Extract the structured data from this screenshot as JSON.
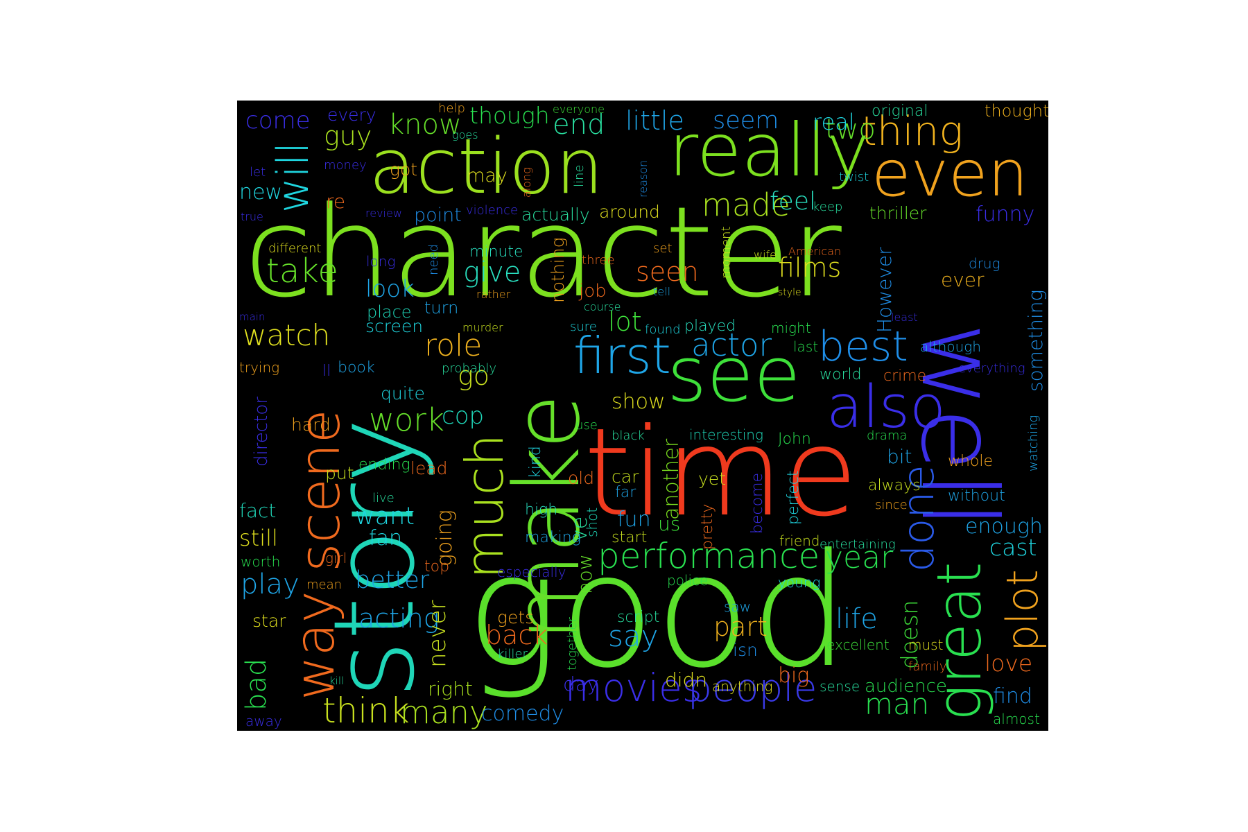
{
  "cloud": {
    "background": "#000000",
    "words": [
      {
        "text": "character",
        "color": "#7ce01f"
      },
      {
        "text": "good",
        "color": "#5ae02b"
      },
      {
        "text": "time",
        "color": "#f03a1e"
      },
      {
        "text": "story",
        "color": "#1fd6b8"
      },
      {
        "text": "make",
        "color": "#66e02a"
      },
      {
        "text": "really",
        "color": "#7ce01f"
      },
      {
        "text": "action",
        "color": "#9be01f"
      },
      {
        "text": "see",
        "color": "#3ee03a"
      },
      {
        "text": "even",
        "color": "#f0a21e"
      },
      {
        "text": "well",
        "color": "#3a2ee8"
      },
      {
        "text": "scene",
        "color": "#f06a1e"
      },
      {
        "text": "much",
        "color": "#a9e01f"
      },
      {
        "text": "also",
        "color": "#3a2ee8"
      },
      {
        "text": "great",
        "color": "#29e050"
      },
      {
        "text": "first",
        "color": "#1fa6e8"
      },
      {
        "text": "way",
        "color": "#f06a1e"
      },
      {
        "text": "done",
        "color": "#2a5ae8"
      },
      {
        "text": "people",
        "color": "#3a3ae8"
      },
      {
        "text": "movies",
        "color": "#3a2ee8"
      },
      {
        "text": "performance",
        "color": "#29e050"
      },
      {
        "text": "thing",
        "color": "#f0b21e"
      },
      {
        "text": "best",
        "color": "#1f8ee8"
      },
      {
        "text": "plot",
        "color": "#f0a21e"
      },
      {
        "text": "will",
        "color": "#1fd6e0"
      },
      {
        "text": "think",
        "color": "#c8e01f"
      },
      {
        "text": "many",
        "color": "#a9e01f"
      },
      {
        "text": "made",
        "color": "#a9e01f"
      },
      {
        "text": "actor",
        "color": "#1fa6e8"
      },
      {
        "text": "work",
        "color": "#66e02a"
      },
      {
        "text": "role",
        "color": "#f0b21e"
      },
      {
        "text": "year",
        "color": "#29e050"
      },
      {
        "text": "watch",
        "color": "#e0e01f"
      },
      {
        "text": "take",
        "color": "#66e02a"
      },
      {
        "text": "give",
        "color": "#29e0c0"
      },
      {
        "text": "know",
        "color": "#66e02a"
      },
      {
        "text": "end",
        "color": "#29e0a0"
      },
      {
        "text": "two",
        "color": "#66e02a"
      },
      {
        "text": "little",
        "color": "#1fa6e8"
      },
      {
        "text": "seem",
        "color": "#1f8ee8"
      },
      {
        "text": "real",
        "color": "#1fd6e0"
      },
      {
        "text": "guy",
        "color": "#a9e01f"
      },
      {
        "text": "come",
        "color": "#3a2ee8"
      },
      {
        "text": "though",
        "color": "#29e050"
      },
      {
        "text": "seen",
        "color": "#f06a1e"
      },
      {
        "text": "films",
        "color": "#e0e01f"
      },
      {
        "text": "feel",
        "color": "#29e0c0"
      },
      {
        "text": "ever",
        "color": "#f0b21e"
      },
      {
        "text": "lot",
        "color": "#3ee03a"
      },
      {
        "text": "look",
        "color": "#1fa6e8"
      },
      {
        "text": "life",
        "color": "#1fa6e8"
      },
      {
        "text": "back",
        "color": "#f06a1e"
      },
      {
        "text": "part",
        "color": "#f0b21e"
      },
      {
        "text": "say",
        "color": "#1fa6e8"
      },
      {
        "text": "man",
        "color": "#29e050"
      },
      {
        "text": "play",
        "color": "#1fa6e8"
      },
      {
        "text": "bad",
        "color": "#29e050"
      },
      {
        "text": "acting",
        "color": "#1fa6e8"
      },
      {
        "text": "better",
        "color": "#1fa6e8"
      },
      {
        "text": "want",
        "color": "#1fd6e0"
      },
      {
        "text": "fan",
        "color": "#1fd6e0"
      },
      {
        "text": "go",
        "color": "#c8e01f"
      },
      {
        "text": "cop",
        "color": "#1fd6b8"
      },
      {
        "text": "funny",
        "color": "#3a2ee8"
      },
      {
        "text": "cast",
        "color": "#1fd6e0"
      },
      {
        "text": "enough",
        "color": "#1fa6e8"
      },
      {
        "text": "love",
        "color": "#f06a1e"
      },
      {
        "text": "find",
        "color": "#1f8ee8"
      },
      {
        "text": "comedy",
        "color": "#1f8ee8"
      },
      {
        "text": "audience",
        "color": "#29e050"
      },
      {
        "text": "big",
        "color": "#f06a1e"
      },
      {
        "text": "didn",
        "color": "#e0e01f"
      },
      {
        "text": "day",
        "color": "#3a2ee8"
      },
      {
        "text": "right",
        "color": "#a9e01f"
      },
      {
        "text": "never",
        "color": "#c8e01f"
      },
      {
        "text": "going",
        "color": "#f0a21e"
      },
      {
        "text": "doesn",
        "color": "#3ee03a"
      },
      {
        "text": "something",
        "color": "#1f8ee8"
      },
      {
        "text": "However",
        "color": "#1f8ee8"
      },
      {
        "text": "another",
        "color": "#7ce01f"
      },
      {
        "text": "us",
        "color": "#3ee03a"
      },
      {
        "text": "fun",
        "color": "#1fa6e8"
      },
      {
        "text": "ve",
        "color": "#29e0a0"
      },
      {
        "text": "now",
        "color": "#66e02a"
      },
      {
        "text": "show",
        "color": "#e0e01f"
      },
      {
        "text": "point",
        "color": "#1f8ee8"
      },
      {
        "text": "actually",
        "color": "#29e0a0"
      },
      {
        "text": "around",
        "color": "#e0e01f"
      },
      {
        "text": "thriller",
        "color": "#66e02a"
      },
      {
        "text": "still",
        "color": "#e0e01f"
      },
      {
        "text": "fact",
        "color": "#1fd6b8"
      },
      {
        "text": "star",
        "color": "#e0e01f"
      },
      {
        "text": "new",
        "color": "#1fd6e0"
      },
      {
        "text": "quite",
        "color": "#1fd6e0"
      },
      {
        "text": "director",
        "color": "#3a2ee8"
      },
      {
        "text": "hard",
        "color": "#f0a21e"
      },
      {
        "text": "screen",
        "color": "#1fd6e0"
      },
      {
        "text": "place",
        "color": "#1fd6b8"
      },
      {
        "text": "turn",
        "color": "#1fa6e8"
      },
      {
        "text": "nothing",
        "color": "#f0a21e"
      },
      {
        "text": "job",
        "color": "#f06a1e"
      },
      {
        "text": "may",
        "color": "#e0e01f"
      },
      {
        "text": "got",
        "color": "#f0a21e"
      },
      {
        "text": "re",
        "color": "#f06a1e"
      },
      {
        "text": "minute",
        "color": "#29e0c0"
      },
      {
        "text": "pretty",
        "color": "#f06a1e"
      },
      {
        "text": "become",
        "color": "#3a2ee8"
      },
      {
        "text": "perfect",
        "color": "#1fd6e0"
      },
      {
        "text": "yet",
        "color": "#c8e01f"
      },
      {
        "text": "start",
        "color": "#c8e01f"
      },
      {
        "text": "high",
        "color": "#29e0c0"
      },
      {
        "text": "making",
        "color": "#1fa6e8"
      },
      {
        "text": "old",
        "color": "#f06a1e"
      },
      {
        "text": "car",
        "color": "#c8e01f"
      },
      {
        "text": "far",
        "color": "#1fa6e8"
      },
      {
        "text": "shot",
        "color": "#1fd6b8"
      },
      {
        "text": "kind",
        "color": "#1fd6e0"
      },
      {
        "text": "gets",
        "color": "#f0a21e"
      },
      {
        "text": "script",
        "color": "#29e0a0"
      },
      {
        "text": "isn",
        "color": "#1f8ee8"
      },
      {
        "text": "saw",
        "color": "#1fa6e8"
      },
      {
        "text": "world",
        "color": "#29e0a0"
      },
      {
        "text": "crime",
        "color": "#f06a1e"
      },
      {
        "text": "bit",
        "color": "#1fa6e8"
      },
      {
        "text": "always",
        "color": "#c8e01f"
      },
      {
        "text": "whole",
        "color": "#f0a21e"
      },
      {
        "text": "without",
        "color": "#1fa6e8"
      },
      {
        "text": "drama",
        "color": "#29e050"
      },
      {
        "text": "John",
        "color": "#29e050"
      },
      {
        "text": "interesting",
        "color": "#1fd6b8"
      },
      {
        "text": "black",
        "color": "#29e0a0"
      },
      {
        "text": "use",
        "color": "#29e050"
      },
      {
        "text": "probably",
        "color": "#29e0a0"
      },
      {
        "text": "book",
        "color": "#1fa6e8"
      },
      {
        "text": "trying",
        "color": "#f0a21e"
      },
      {
        "text": "ll",
        "color": "#3a2ee8"
      },
      {
        "text": "ending",
        "color": "#29e050"
      },
      {
        "text": "lead",
        "color": "#f06a1e"
      },
      {
        "text": "put",
        "color": "#c8e01f"
      },
      {
        "text": "live",
        "color": "#29e0a0"
      },
      {
        "text": "worth",
        "color": "#29e050"
      },
      {
        "text": "girl",
        "color": "#f06a1e"
      },
      {
        "text": "top",
        "color": "#f06a1e"
      },
      {
        "text": "mean",
        "color": "#f0a21e"
      },
      {
        "text": "especially",
        "color": "#3a2ee8"
      },
      {
        "text": "together",
        "color": "#29e050"
      },
      {
        "text": "killer",
        "color": "#29e0a0"
      },
      {
        "text": "kill",
        "color": "#29e0a0"
      },
      {
        "text": "away",
        "color": "#3a2ee8"
      },
      {
        "text": "anything",
        "color": "#e0e01f"
      },
      {
        "text": "sense",
        "color": "#29e0a0"
      },
      {
        "text": "family",
        "color": "#f06a1e"
      },
      {
        "text": "must",
        "color": "#e0e01f"
      },
      {
        "text": "excellent",
        "color": "#3ee03a"
      },
      {
        "text": "almost",
        "color": "#29e050"
      },
      {
        "text": "police",
        "color": "#29e050"
      },
      {
        "text": "young",
        "color": "#1fd6e0"
      },
      {
        "text": "friend",
        "color": "#c8e01f"
      },
      {
        "text": "entertaining",
        "color": "#29e0a0"
      },
      {
        "text": "since",
        "color": "#f0a21e"
      },
      {
        "text": "watching",
        "color": "#1fa6e8"
      },
      {
        "text": "everything",
        "color": "#3a2ee8"
      },
      {
        "text": "although",
        "color": "#1fa6e8"
      },
      {
        "text": "least",
        "color": "#3a2ee8"
      },
      {
        "text": "last",
        "color": "#29e050"
      },
      {
        "text": "might",
        "color": "#29e050"
      },
      {
        "text": "played",
        "color": "#29e0c0"
      },
      {
        "text": "found",
        "color": "#1fd6e0"
      },
      {
        "text": "sure",
        "color": "#1fd6e0"
      },
      {
        "text": "course",
        "color": "#29e0a0"
      },
      {
        "text": "tell",
        "color": "#1fa6e8"
      },
      {
        "text": "rather",
        "color": "#f0a21e"
      },
      {
        "text": "murder",
        "color": "#c8e01f"
      },
      {
        "text": "need",
        "color": "#1f8ee8"
      },
      {
        "text": "long",
        "color": "#3a2ee8"
      },
      {
        "text": "different",
        "color": "#e0e01f"
      },
      {
        "text": "main",
        "color": "#3a2ee8"
      },
      {
        "text": "true",
        "color": "#3a2ee8"
      },
      {
        "text": "let",
        "color": "#3a2ee8"
      },
      {
        "text": "money",
        "color": "#3a2ee8"
      },
      {
        "text": "every",
        "color": "#3a2ee8"
      },
      {
        "text": "help",
        "color": "#f0a21e"
      },
      {
        "text": "goes",
        "color": "#29e0a0"
      },
      {
        "text": "everyone",
        "color": "#3ee03a"
      },
      {
        "text": "along",
        "color": "#f06a1e"
      },
      {
        "text": "line",
        "color": "#29e0a0"
      },
      {
        "text": "review",
        "color": "#3a2ee8"
      },
      {
        "text": "violence",
        "color": "#3a2ee8"
      },
      {
        "text": "reason",
        "color": "#1f8ee8"
      },
      {
        "text": "twist",
        "color": "#1fd6e0"
      },
      {
        "text": "keep",
        "color": "#29e0a0"
      },
      {
        "text": "original",
        "color": "#29e0a0"
      },
      {
        "text": "thought",
        "color": "#f0b21e"
      },
      {
        "text": "set",
        "color": "#f0a21e"
      },
      {
        "text": "three",
        "color": "#f06a1e"
      },
      {
        "text": "moment",
        "color": "#c8e01f"
      },
      {
        "text": "wife",
        "color": "#c8e01f"
      },
      {
        "text": "American",
        "color": "#f06a1e"
      },
      {
        "text": "style",
        "color": "#e0e01f"
      },
      {
        "text": "drug",
        "color": "#1f8ee8"
      }
    ]
  }
}
